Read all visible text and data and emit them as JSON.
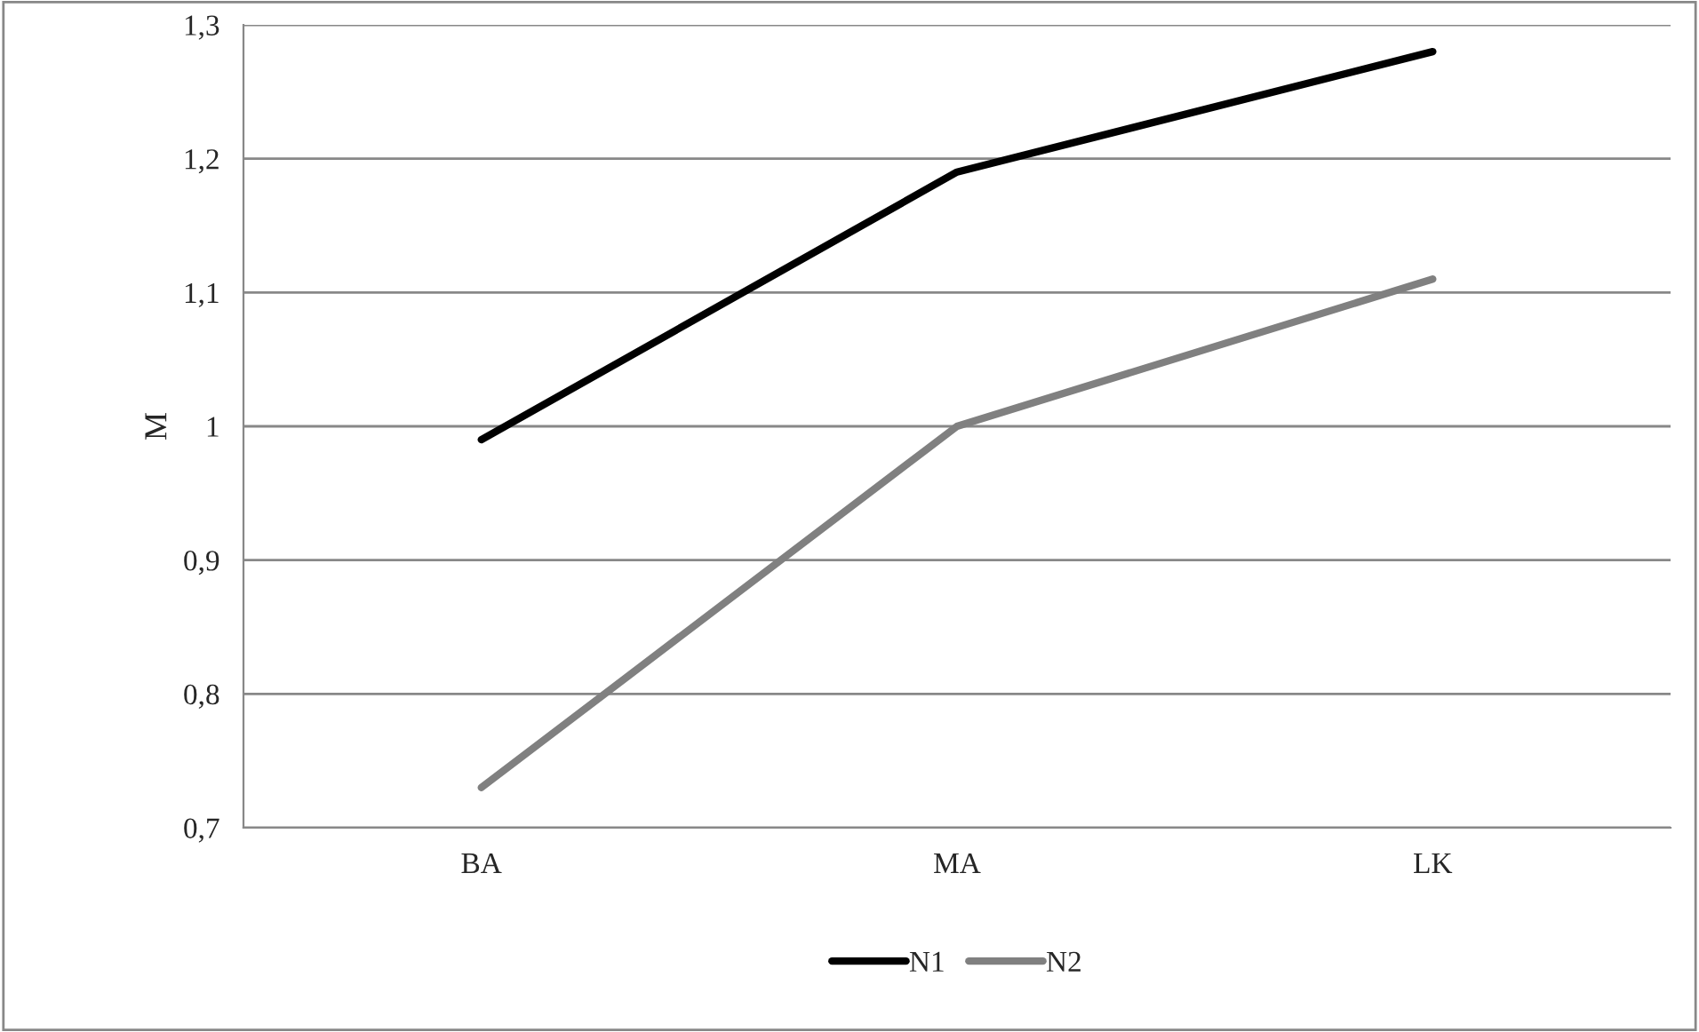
{
  "chart_data": {
    "type": "line",
    "ylabel": "M",
    "categories": [
      "BA",
      "MA",
      "LK"
    ],
    "series": [
      {
        "name": "N1",
        "color": "#000000",
        "values": [
          0.99,
          1.19,
          1.28
        ]
      },
      {
        "name": "N2",
        "color": "#808080",
        "values": [
          0.73,
          1.0,
          1.11
        ]
      }
    ],
    "ylim": [
      0.7,
      1.3
    ],
    "yticks": [
      {
        "value": 0.7,
        "label": "0,7"
      },
      {
        "value": 0.8,
        "label": "0,8"
      },
      {
        "value": 0.9,
        "label": "0,9"
      },
      1,
      {
        "value": 1.1,
        "label": "1,1"
      },
      {
        "value": 1.2,
        "label": "1,2"
      },
      {
        "value": 1.3,
        "label": "1,3"
      }
    ],
    "grid": "y",
    "legend": "bottom",
    "marker": "none",
    "line_style": "solid"
  }
}
